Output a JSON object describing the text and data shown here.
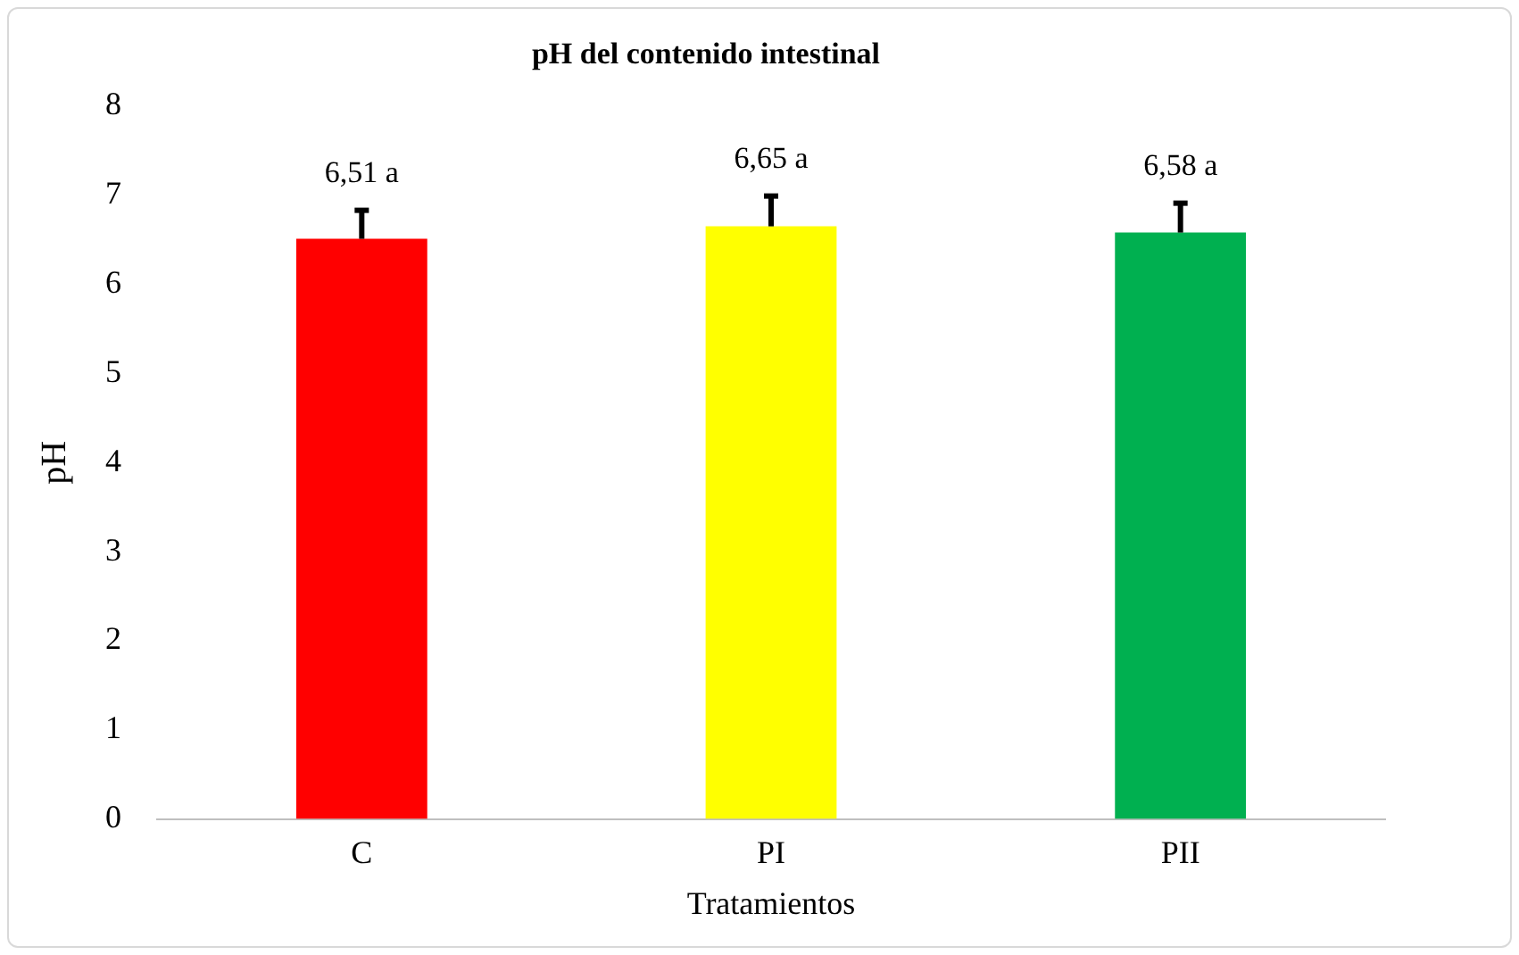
{
  "chart_data": {
    "type": "bar",
    "title": "pH del contenido intestinal",
    "xlabel": "Tratamientos",
    "ylabel": "pH",
    "categories": [
      "C",
      "PI",
      "PII"
    ],
    "values": [
      6.51,
      6.65,
      6.58
    ],
    "colors": [
      "#ff0000",
      "#ffff00",
      "#00b050"
    ],
    "errors": [
      [
        6.51,
        6.83
      ],
      [
        6.65,
        6.99
      ],
      [
        6.58,
        6.91
      ]
    ],
    "value_labels": [
      "6,51 a",
      "6,65 a",
      "6,58 a"
    ],
    "ylim": [
      0,
      8
    ],
    "yticks": [
      0,
      1,
      2,
      3,
      4,
      5,
      6,
      7,
      8
    ],
    "grid": false,
    "legend": false
  }
}
